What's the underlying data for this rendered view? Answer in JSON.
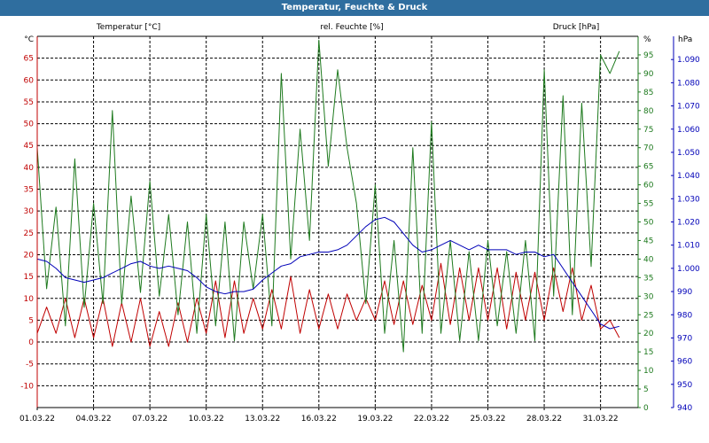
{
  "window": {
    "title": "Temperatur, Feuchte & Druck"
  },
  "colors": {
    "temperature": "#c00000",
    "humidity": "#1e7a1e",
    "pressure": "#0000b8",
    "grid": "#000000",
    "title_bar": "#2f6e9f"
  },
  "chart_data": {
    "type": "line",
    "title": "Temperatur, Feuchte & Druck",
    "grid": true,
    "x_axis": {
      "range": [
        "01.03.22",
        "02.04.22"
      ],
      "tick_labels": [
        "01.03.22",
        "04.03.22",
        "07.03.22",
        "10.03.22",
        "13.03.22",
        "16.03.22",
        "19.03.22",
        "22.03.22",
        "25.03.22",
        "28.03.22",
        "31.03.22"
      ]
    },
    "y_axes": {
      "temperature": {
        "label": "Temperatur [°C]",
        "unit": "°C",
        "range": [
          -15,
          70
        ],
        "ticks": [
          -10,
          -5,
          0,
          5,
          10,
          15,
          20,
          25,
          30,
          35,
          40,
          45,
          50,
          55,
          60,
          65
        ]
      },
      "humidity": {
        "label": "rel. Feuchte [%]",
        "unit": "%",
        "range": [
          0,
          100
        ],
        "ticks": [
          0,
          5,
          10,
          15,
          20,
          25,
          30,
          35,
          40,
          45,
          50,
          55,
          60,
          65,
          70,
          75,
          80,
          85,
          90,
          95
        ]
      },
      "pressure": {
        "label": "Druck [hPa]",
        "unit": "hPa",
        "range": [
          940,
          1100
        ],
        "ticks": [
          "940",
          "950",
          "960",
          "970",
          "980",
          "990",
          "1.000",
          "1.010",
          "1.020",
          "1.030",
          "1.040",
          "1.050",
          "1.060",
          "1.070",
          "1.080",
          "1.090"
        ]
      }
    },
    "x": [
      1.0,
      1.5,
      2.0,
      2.5,
      3.0,
      3.5,
      4.0,
      4.5,
      5.0,
      5.5,
      6.0,
      6.5,
      7.0,
      7.5,
      8.0,
      8.5,
      9.0,
      9.5,
      10.0,
      10.5,
      11.0,
      11.5,
      12.0,
      12.5,
      13.0,
      13.5,
      14.0,
      14.5,
      15.0,
      15.5,
      16.0,
      16.5,
      17.0,
      17.5,
      18.0,
      18.5,
      19.0,
      19.5,
      20.0,
      20.5,
      21.0,
      21.5,
      22.0,
      22.5,
      23.0,
      23.5,
      24.0,
      24.5,
      25.0,
      25.5,
      26.0,
      26.5,
      27.0,
      27.5,
      28.0,
      28.5,
      29.0,
      29.5,
      30.0,
      30.5,
      31.0,
      31.5,
      32.0
    ],
    "series": [
      {
        "name": "Temperatur [°C]",
        "axis": "temperature",
        "color": "#c00000",
        "values": [
          2,
          8,
          2,
          10,
          1,
          10,
          1,
          10,
          -1,
          9,
          0,
          10,
          -1,
          7,
          -1,
          9,
          0,
          10,
          2,
          14,
          1,
          14,
          2,
          10,
          3,
          12,
          3,
          15,
          2,
          12,
          3,
          11,
          3,
          11,
          5,
          10,
          5,
          14,
          4,
          14,
          4,
          13,
          5,
          18,
          4,
          17,
          5,
          17,
          5,
          17,
          3,
          16,
          5,
          16,
          5,
          17,
          7,
          17,
          5,
          13,
          3,
          5,
          1
        ]
      },
      {
        "name": "rel. Feuchte [%]",
        "axis": "humidity",
        "color": "#1e7a1e",
        "values": [
          70,
          32,
          54,
          22,
          67,
          27,
          55,
          28,
          80,
          28,
          57,
          31,
          61,
          30,
          52,
          25,
          50,
          20,
          52,
          22,
          50,
          18,
          50,
          32,
          52,
          22,
          90,
          40,
          75,
          45,
          99,
          65,
          91,
          70,
          55,
          28,
          60,
          20,
          45,
          15,
          70,
          20,
          77,
          20,
          45,
          18,
          42,
          18,
          45,
          22,
          42,
          20,
          45,
          18,
          91,
          30,
          84,
          25,
          82,
          38,
          95,
          90,
          96
        ]
      },
      {
        "name": "Druck [hPa]",
        "axis": "pressure",
        "color": "#0000b8",
        "values": [
          1004,
          1003,
          1000,
          996,
          995,
          994,
          995,
          996,
          998,
          1000,
          1002,
          1003,
          1001,
          1000,
          1001,
          1000,
          999,
          996,
          992,
          990,
          989,
          990,
          990,
          991,
          995,
          998,
          1001,
          1002,
          1005,
          1006,
          1007,
          1007,
          1008,
          1010,
          1014,
          1018,
          1021,
          1022,
          1020,
          1015,
          1010,
          1007,
          1008,
          1010,
          1012,
          1010,
          1008,
          1010,
          1008,
          1008,
          1008,
          1006,
          1007,
          1007,
          1005,
          1006,
          1000,
          994,
          988,
          982,
          976,
          974,
          975
        ]
      }
    ]
  }
}
